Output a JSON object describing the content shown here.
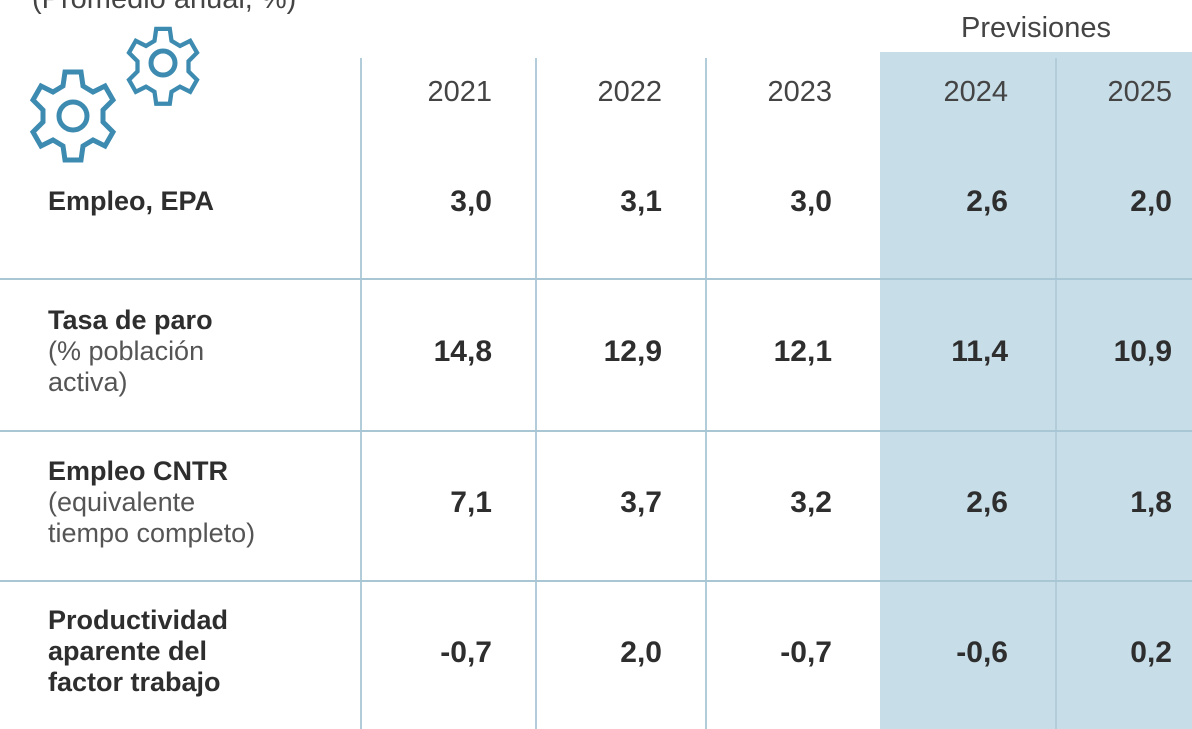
{
  "header": {
    "note": "(Promedio anual, %)",
    "forecast_label": "Previsiones"
  },
  "table": {
    "columns": [
      "2021",
      "2022",
      "2023",
      "2024",
      "2025"
    ],
    "rows": [
      {
        "label": [
          "Empleo, EPA"
        ],
        "note": [],
        "values": [
          "3,0",
          "3,1",
          "3,0",
          "2,6",
          "2,0"
        ]
      },
      {
        "label": [
          "Tasa de paro"
        ],
        "note": [
          "(% población",
          "activa)"
        ],
        "values": [
          "14,8",
          "12,9",
          "12,1",
          "11,4",
          "10,9"
        ]
      },
      {
        "label": [
          "Empleo CNTR"
        ],
        "note": [
          "(equivalente",
          "tiempo completo)"
        ],
        "values": [
          "7,1",
          "3,7",
          "3,2",
          "2,6",
          "1,8"
        ]
      },
      {
        "label": [
          "Productividad",
          "aparente del",
          "factor trabajo"
        ],
        "note": [],
        "values": [
          "-0,7",
          "2,0",
          "-0,7",
          "-0,6",
          "0,2"
        ]
      }
    ]
  }
}
